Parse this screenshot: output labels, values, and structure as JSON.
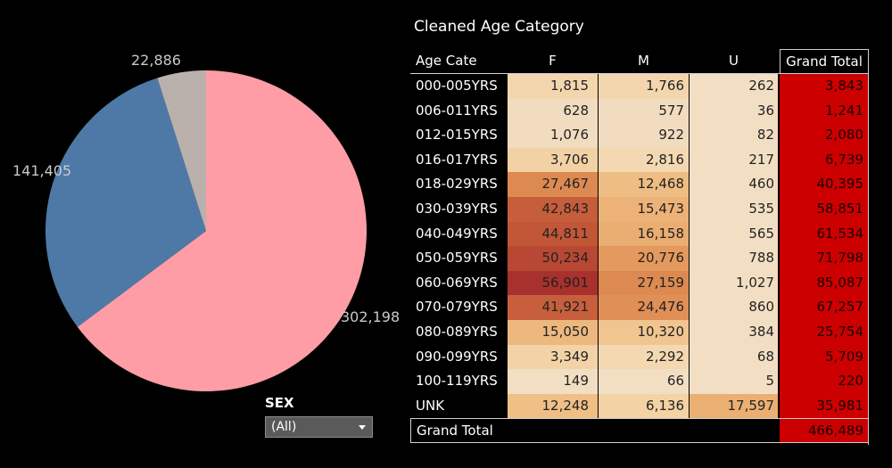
{
  "pie": {
    "labels": [
      "302,198",
      "141,405",
      "22,886"
    ],
    "values": [
      302198,
      141405,
      22886
    ],
    "colors": [
      "#ff9da6",
      "#4e79a7",
      "#bab0ac"
    ]
  },
  "filter": {
    "title": "SEX",
    "selected": "(All)"
  },
  "table": {
    "title": "Cleaned Age Category",
    "headers": {
      "label": "Age Cate",
      "f": "F",
      "m": "M",
      "u": "U",
      "total": "Grand Total"
    },
    "rows": [
      {
        "label": "000-005YRS",
        "f": "1,815",
        "m": "1,766",
        "u": "262",
        "total": "3,843",
        "f_color": "#f3d6ad",
        "m_color": "#f3d6ad",
        "u_color": "#f2dfc3"
      },
      {
        "label": "006-011YRS",
        "f": "628",
        "m": "577",
        "u": "36",
        "total": "1,241",
        "f_color": "#f1dcbf",
        "m_color": "#f1dcbf",
        "u_color": "#f2dfc3"
      },
      {
        "label": "012-015YRS",
        "f": "1,076",
        "m": "922",
        "u": "82",
        "total": "2,080",
        "f_color": "#f1dcbf",
        "m_color": "#f1dcbf",
        "u_color": "#f2dfc3"
      },
      {
        "label": "016-017YRS",
        "f": "3,706",
        "m": "2,816",
        "u": "217",
        "total": "6,739",
        "f_color": "#f2d2a5",
        "m_color": "#f3d8b2",
        "u_color": "#f2dfc3"
      },
      {
        "label": "018-029YRS",
        "f": "27,467",
        "m": "12,468",
        "u": "460",
        "total": "40,395",
        "f_color": "#dd8a52",
        "m_color": "#eebd83",
        "u_color": "#f2dfc3"
      },
      {
        "label": "030-039YRS",
        "f": "42,843",
        "m": "15,473",
        "u": "535",
        "total": "58,851",
        "f_color": "#c65d3b",
        "m_color": "#ecb277",
        "u_color": "#f2dfc3"
      },
      {
        "label": "040-049YRS",
        "f": "44,811",
        "m": "16,158",
        "u": "565",
        "total": "61,534",
        "f_color": "#c25738",
        "m_color": "#eaad72",
        "u_color": "#f2dfc3"
      },
      {
        "label": "050-059YRS",
        "f": "50,234",
        "m": "20,776",
        "u": "788",
        "total": "71,798",
        "f_color": "#b84833",
        "m_color": "#e4995e",
        "u_color": "#f2dfc3"
      },
      {
        "label": "060-069YRS",
        "f": "56,901",
        "m": "27,159",
        "u": "1,027",
        "total": "85,087",
        "f_color": "#a8302d",
        "m_color": "#dc8a52",
        "u_color": "#f2dfc3"
      },
      {
        "label": "070-079YRS",
        "f": "41,921",
        "m": "24,476",
        "u": "860",
        "total": "67,257",
        "f_color": "#c75f3c",
        "m_color": "#e08f56",
        "u_color": "#f2dfc3"
      },
      {
        "label": "080-089YRS",
        "f": "15,050",
        "m": "10,320",
        "u": "384",
        "total": "25,754",
        "f_color": "#edb87d",
        "m_color": "#f0c590",
        "u_color": "#f2dfc3"
      },
      {
        "label": "090-099YRS",
        "f": "3,349",
        "m": "2,292",
        "u": "68",
        "total": "5,709",
        "f_color": "#f2d3a7",
        "m_color": "#f3d8b2",
        "u_color": "#f2dfc3"
      },
      {
        "label": "100-119YRS",
        "f": "149",
        "m": "66",
        "u": "5",
        "total": "220",
        "f_color": "#f2dfc3",
        "m_color": "#f2dfc3",
        "u_color": "#f2dfc3"
      },
      {
        "label": "UNK",
        "f": "12,248",
        "m": "6,136",
        "u": "17,597",
        "total": "35,981",
        "f_color": "#efbf86",
        "m_color": "#f3d2a4",
        "u_color": "#eab071"
      }
    ],
    "grand_total": {
      "label": "Grand Total",
      "total": "466,489"
    }
  }
}
